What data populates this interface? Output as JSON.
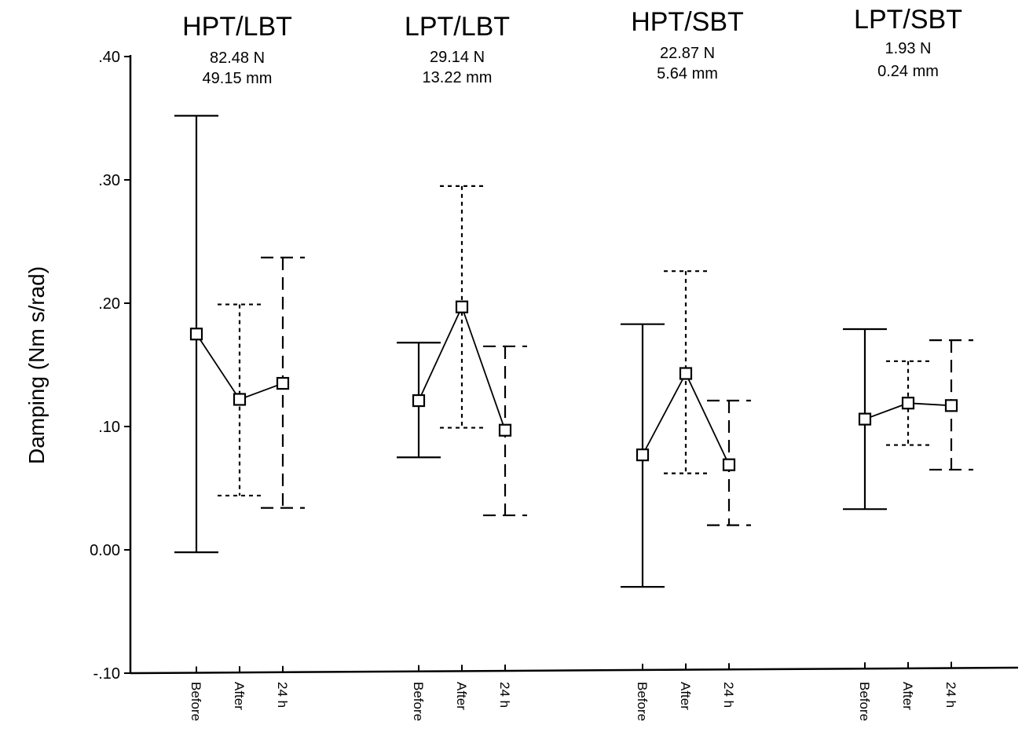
{
  "chart_data": {
    "type": "errorbar",
    "title": "",
    "xlabel": "",
    "ylabel": "Damping (Nm s/rad)",
    "ylim": [
      -0.1,
      0.4
    ],
    "yticks": [
      -0.1,
      0.0,
      0.1,
      0.2,
      0.3,
      0.4
    ],
    "ytick_labels": [
      "-.10",
      "0.00",
      ".10",
      ".20",
      ".30",
      ".40"
    ],
    "grid": false,
    "legend": "none",
    "conditions": [
      "Before",
      "After",
      "24 h"
    ],
    "error_bar_styles": [
      "solid",
      "dotted",
      "dashed"
    ],
    "groups": [
      {
        "name": "HPT/LBT",
        "force": "82.48 N",
        "displacement": "49.15 mm",
        "mean": [
          0.175,
          0.122,
          0.135
        ],
        "upper": [
          0.352,
          0.199,
          0.237
        ],
        "lower": [
          -0.002,
          0.044,
          0.034
        ]
      },
      {
        "name": "LPT/LBT",
        "force": "29.14 N",
        "displacement": "13.22 mm",
        "mean": [
          0.121,
          0.197,
          0.097
        ],
        "upper": [
          0.168,
          0.295,
          0.165
        ],
        "lower": [
          0.075,
          0.099,
          0.028
        ]
      },
      {
        "name": "HPT/SBT",
        "force": "22.87 N",
        "displacement": "5.64 mm",
        "mean": [
          0.077,
          0.143,
          0.069
        ],
        "upper": [
          0.183,
          0.226,
          0.121
        ],
        "lower": [
          -0.03,
          0.062,
          0.02
        ]
      },
      {
        "name": "LPT/SBT",
        "force": "1.93 N",
        "displacement": "0.24 mm",
        "mean": [
          0.106,
          0.119,
          0.117
        ],
        "upper": [
          0.179,
          0.153,
          0.17
        ],
        "lower": [
          0.033,
          0.085,
          0.065
        ]
      }
    ]
  }
}
